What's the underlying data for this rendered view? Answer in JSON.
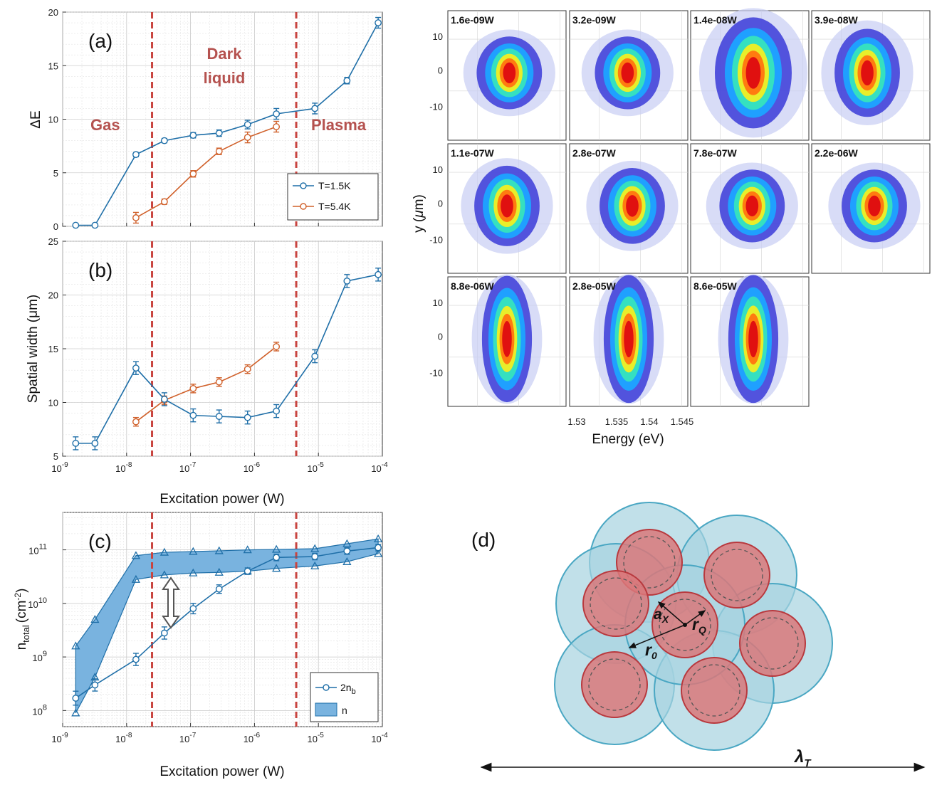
{
  "colors": {
    "t15": "#1f6fa8",
    "t54": "#d0602a",
    "phase_line": "#c8443f",
    "band_fill": "#79b3df",
    "circle_outer": "#a6d3e0",
    "circle_outer_stroke": "#4aa7c3",
    "circle_inner": "#d9787a",
    "circle_inner_stroke": "#b8393e"
  },
  "chart_data": [
    {
      "id": "a",
      "type": "line",
      "panel_label": "(a)",
      "xscale": "log",
      "xlim": [
        1e-09,
        0.0001
      ],
      "ylim": [
        0,
        20
      ],
      "yticks": [
        "0",
        "5",
        "10",
        "15",
        "20"
      ],
      "ylabel": "ΔE",
      "phase_labels": [
        "Gas",
        "Dark",
        "liquid",
        "Plasma"
      ],
      "phase_boundaries_x": [
        2.5e-08,
        4.5e-06
      ],
      "legend": [
        "T=1.5K",
        "T=5.4K"
      ],
      "series": [
        {
          "name": "T=1.5K",
          "x": [
            1.6e-09,
            3.2e-09,
            1.4e-08,
            3.9e-08,
            1.1e-07,
            2.8e-07,
            7.8e-07,
            2.2e-06,
            8.8e-06,
            2.8e-05,
            8.6e-05
          ],
          "y": [
            0.1,
            0.1,
            6.7,
            8.0,
            8.5,
            8.7,
            9.5,
            10.5,
            11.0,
            13.6,
            19.0
          ],
          "err": [
            0,
            0,
            0.2,
            0.2,
            0.25,
            0.3,
            0.4,
            0.5,
            0.5,
            0.3,
            0.5
          ]
        },
        {
          "name": "T=5.4K",
          "x": [
            1.4e-08,
            3.9e-08,
            1.1e-07,
            2.8e-07,
            7.8e-07,
            2.2e-06
          ],
          "y": [
            0.8,
            2.3,
            4.9,
            7.0,
            8.3,
            9.3
          ],
          "err": [
            0.5,
            0.25,
            0.3,
            0.3,
            0.5,
            0.5
          ]
        }
      ]
    },
    {
      "id": "b",
      "type": "line",
      "panel_label": "(b)",
      "xscale": "log",
      "xlim": [
        1e-09,
        0.0001
      ],
      "ylim": [
        5,
        25
      ],
      "yticks": [
        "5",
        "10",
        "15",
        "20",
        "25"
      ],
      "ylabel": "Spatial width (μm)",
      "xlabel": "Excitation power (W)",
      "phase_boundaries_x": [
        2.5e-08,
        4.5e-06
      ],
      "series": [
        {
          "name": "T=1.5K",
          "x": [
            1.6e-09,
            3.2e-09,
            1.4e-08,
            3.9e-08,
            1.1e-07,
            2.8e-07,
            7.8e-07,
            2.2e-06,
            8.8e-06,
            2.8e-05,
            8.6e-05
          ],
          "y": [
            6.2,
            6.2,
            13.2,
            10.3,
            8.8,
            8.7,
            8.6,
            9.2,
            14.3,
            21.3,
            21.9
          ],
          "err": [
            0.6,
            0.6,
            0.6,
            0.6,
            0.6,
            0.6,
            0.6,
            0.6,
            0.6,
            0.6,
            0.6
          ]
        },
        {
          "name": "T=5.4K",
          "x": [
            1.4e-08,
            3.9e-08,
            1.1e-07,
            2.8e-07,
            7.8e-07,
            2.2e-06
          ],
          "y": [
            8.2,
            10.2,
            11.3,
            11.9,
            13.1,
            15.2
          ],
          "err": [
            0.4,
            0.4,
            0.4,
            0.4,
            0.4,
            0.4
          ]
        }
      ]
    },
    {
      "id": "c",
      "type": "line",
      "panel_label": "(c)",
      "xscale": "log",
      "yscale": "log",
      "xlim": [
        1e-09,
        0.0001
      ],
      "ylim": [
        50000000.0,
        500000000000.0
      ],
      "ylabel_main": "n",
      "ylabel_sub": "total",
      "ylabel_unit": "(cm",
      "ylabel_exp": "-2",
      "ylabel_close": ")",
      "xlabel": "Excitation power (W)",
      "phase_boundaries_x": [
        2.5e-08,
        4.5e-06
      ],
      "legend_line_main": "2n",
      "legend_line_sub": "b",
      "legend_band": "n",
      "series": [
        {
          "name": "2n_b",
          "x": [
            1.6e-09,
            3.2e-09,
            1.4e-08,
            3.9e-08,
            1.1e-07,
            2.8e-07,
            7.8e-07,
            2.2e-06,
            8.8e-06,
            2.8e-05,
            8.6e-05
          ],
          "y": [
            170000000.0,
            300000000.0,
            900000000.0,
            2800000000.0,
            8000000000.0,
            18500000000.0,
            40000000000.0,
            72000000000.0,
            75000000000.0,
            95000000000.0,
            110000000000.0
          ],
          "errfactor": [
            1.35,
            1.3,
            1.3,
            1.3,
            1.25,
            1.2,
            1.15,
            1.15,
            1.15,
            1.15,
            1.15
          ]
        },
        {
          "name": "n_upper",
          "x": [
            1.6e-09,
            3.2e-09,
            1.4e-08,
            3.9e-08,
            1.1e-07,
            2.8e-07,
            7.8e-07,
            2.2e-06,
            8.8e-06,
            2.8e-05,
            8.6e-05
          ],
          "y": [
            1600000000.0,
            5000000000.0,
            78000000000.0,
            90000000000.0,
            93000000000.0,
            96000000000.0,
            100000000000.0,
            102000000000.0,
            105000000000.0,
            130000000000.0,
            160000000000.0
          ]
        },
        {
          "name": "n_lower",
          "x": [
            1.6e-09,
            3.2e-09,
            1.4e-08,
            3.9e-08,
            1.1e-07,
            2.8e-07,
            7.8e-07,
            2.2e-06,
            8.8e-06,
            2.8e-05,
            8.6e-05
          ],
          "y": [
            90000000.0,
            420000000.0,
            28000000000.0,
            34000000000.0,
            37000000000.0,
            38000000000.0,
            40000000000.0,
            45000000000.0,
            50000000000.0,
            60000000000.0,
            85000000000.0
          ]
        }
      ]
    },
    {
      "id": "heatmaps",
      "type": "heatmap",
      "ylabel_pre": "y (",
      "ylabel_mu": "μ",
      "ylabel_post": "m)",
      "xlabel": "Energy (eV)",
      "xticks": [
        "1.53",
        "1.535",
        "1.54",
        "1.545"
      ],
      "yticks": [
        "10",
        "0",
        "-10"
      ],
      "panels": [
        "1.6e-09W",
        "3.2e-09W",
        "1.4e-08W",
        "3.9e-08W",
        "1.1e-07W",
        "2.8e-07W",
        "7.8e-07W",
        "2.2e-06W",
        "8.8e-06W",
        "2.8e-05W",
        "8.6e-05W"
      ],
      "spot_widths_um": [
        3.0,
        3.0,
        5.5,
        4.0,
        3.5,
        3.2,
        3.0,
        3.0,
        6.5,
        8.5,
        9.0
      ]
    }
  ],
  "diagram": {
    "panel_label": "(d)",
    "label_ax": "a",
    "label_ax_sub": "X",
    "label_rq": "r",
    "label_rq_sub": "Q",
    "label_r0": "r",
    "label_r0_sub": "0",
    "label_lambda": "λ",
    "label_lambda_sub": "T"
  }
}
